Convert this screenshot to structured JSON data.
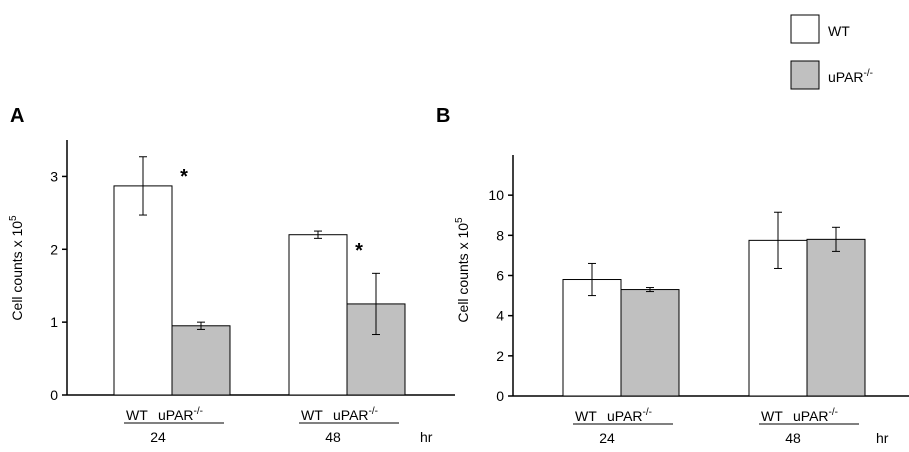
{
  "legend": {
    "items": [
      {
        "label": "WT",
        "sup": "",
        "color": "#ffffff"
      },
      {
        "label": "uPAR",
        "sup": "-/-",
        "color": "#c0c0c0"
      }
    ]
  },
  "chart_data": [
    {
      "type": "bar",
      "panel": "A",
      "ylabel": "Cell counts x 10",
      "ylabel_sup": "5",
      "ylim": [
        0,
        3.5
      ],
      "yticks": [
        0,
        1,
        2,
        3
      ],
      "group_labels": [
        "24",
        "48"
      ],
      "x_unit": "hr",
      "bar_labels": [
        {
          "text": "WT",
          "sup": ""
        },
        {
          "text": "uPAR",
          "sup": "-/-"
        }
      ],
      "series": [
        {
          "name": "WT",
          "color": "#ffffff",
          "values": [
            2.87,
            2.2
          ],
          "errors": [
            0.4,
            0.05
          ]
        },
        {
          "name": "uPAR-/-",
          "color": "#c0c0c0",
          "values": [
            0.95,
            1.25
          ],
          "errors": [
            0.05,
            0.42
          ]
        }
      ],
      "annotations": [
        {
          "text": "*",
          "group": 0,
          "series": 0
        },
        {
          "text": "*",
          "group": 1,
          "series": 0
        }
      ]
    },
    {
      "type": "bar",
      "panel": "B",
      "ylabel": "Cell counts x 10",
      "ylabel_sup": "5",
      "ylim": [
        0,
        12
      ],
      "yticks": [
        0,
        2,
        4,
        6,
        8,
        10
      ],
      "group_labels": [
        "24",
        "48"
      ],
      "x_unit": "hr",
      "bar_labels": [
        {
          "text": "WT",
          "sup": ""
        },
        {
          "text": "uPAR",
          "sup": "-/-"
        }
      ],
      "series": [
        {
          "name": "WT",
          "color": "#ffffff",
          "values": [
            5.8,
            7.75
          ],
          "errors": [
            0.8,
            1.4
          ]
        },
        {
          "name": "uPAR-/-",
          "color": "#c0c0c0",
          "values": [
            5.3,
            7.8
          ],
          "errors": [
            0.1,
            0.6
          ]
        }
      ],
      "annotations": []
    }
  ]
}
